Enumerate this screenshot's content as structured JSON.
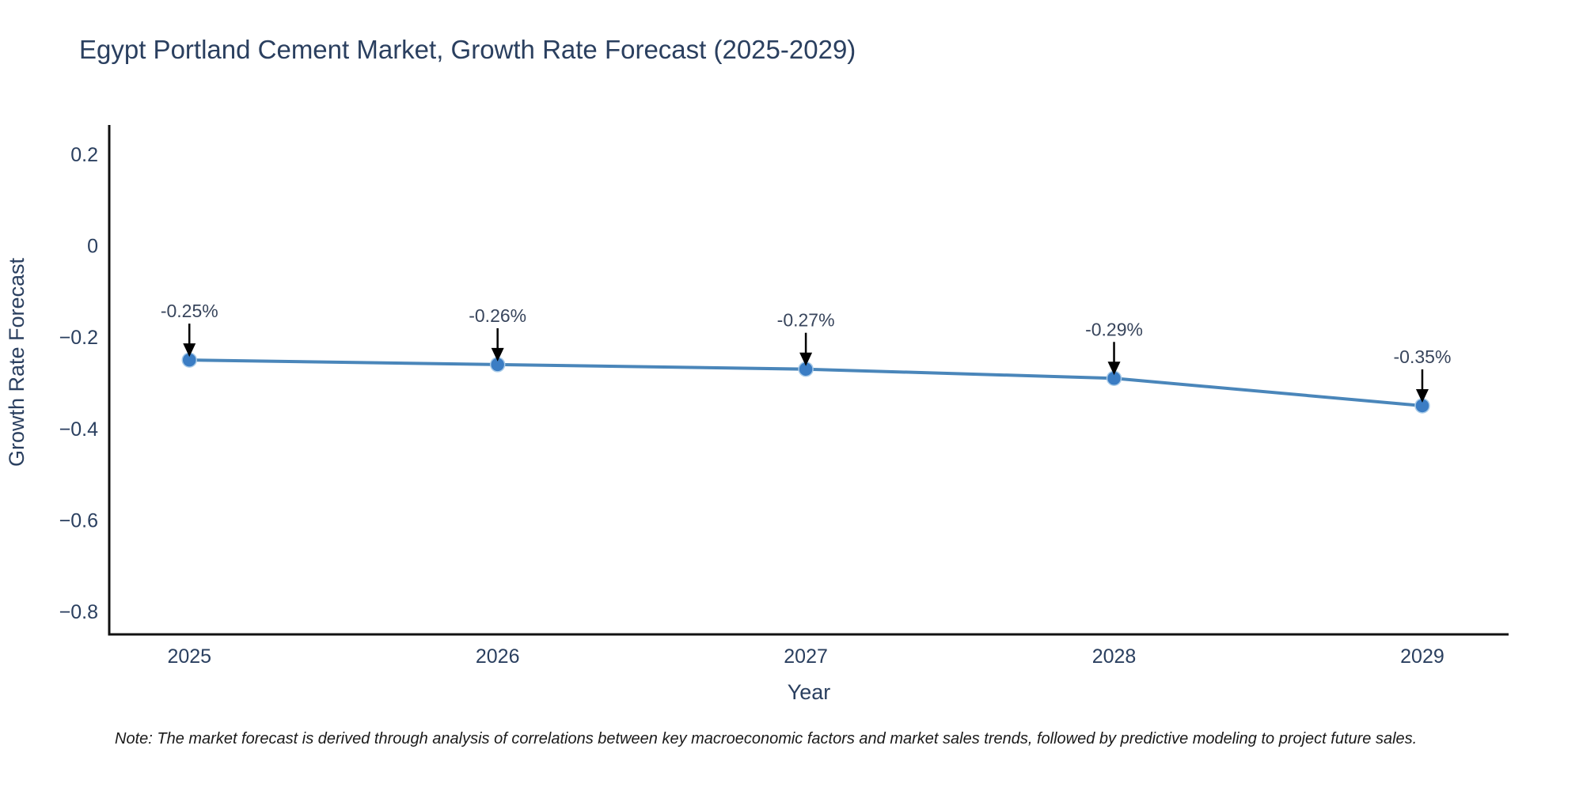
{
  "page": {
    "background": "#ffffff"
  },
  "header": {
    "title": "Egypt Portland Cement Market, Growth Rate Forecast (2025-2029)"
  },
  "footer": {
    "note": "Note: The market forecast is derived through analysis of correlations between key macroeconomic factors and market sales trends, followed by predictive modeling to project future sales."
  },
  "chart_data": {
    "type": "line",
    "title": "Egypt Portland Cement Market, Growth Rate Forecast (2025-2029)",
    "xlabel": "Year",
    "ylabel": "Growth Rate Forecast",
    "x": [
      2025,
      2026,
      2027,
      2028,
      2029
    ],
    "series": [
      {
        "name": "Growth Rate Forecast",
        "values": [
          -0.25,
          -0.26,
          -0.27,
          -0.29,
          -0.35
        ]
      }
    ],
    "point_labels": [
      "-0.25%",
      "-0.26%",
      "-0.27%",
      "-0.29%",
      "-0.35%"
    ],
    "x_tick_labels": [
      "2025",
      "2026",
      "2027",
      "2028",
      "2029"
    ],
    "y_ticks": [
      0.2,
      0,
      -0.2,
      -0.4,
      -0.6,
      -0.8
    ],
    "y_tick_labels": [
      "0.2",
      "0",
      "−0.2",
      "−0.4",
      "−0.6",
      "−0.8"
    ],
    "xlim": [
      2024.74,
      2029.28
    ],
    "ylim": [
      -0.85,
      0.264
    ],
    "grid": false,
    "legend": false,
    "annotation_arrows": "down",
    "colors": {
      "line": "#4a86ba",
      "marker": "#3b7dc4",
      "marker_outline": "#a9cbe8",
      "axis": "#111111",
      "tick_text": "#2a3f5f",
      "annotation_text": "#38455c",
      "arrow": "#000000",
      "note_text": "#1a1a1a"
    }
  }
}
